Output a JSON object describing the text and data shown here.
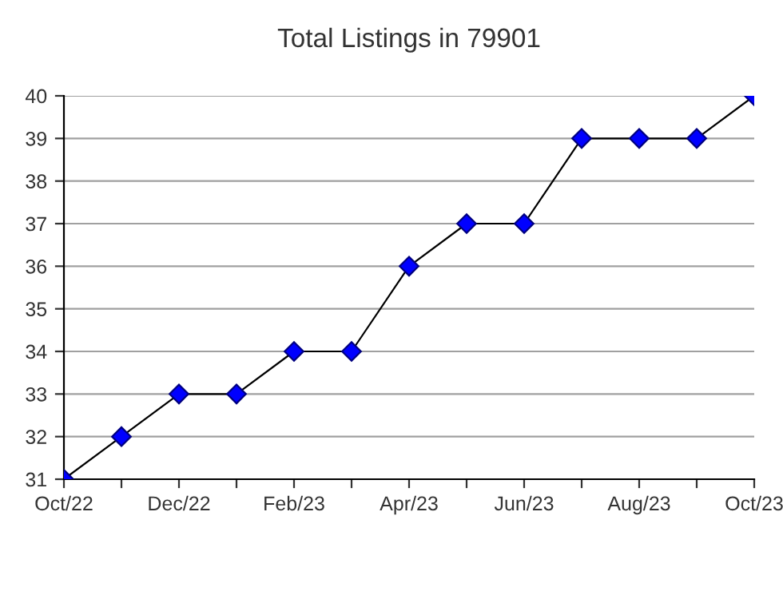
{
  "chart_data": {
    "type": "line",
    "title": "Total Listings in 79901",
    "categories": [
      "Oct/22",
      null,
      "Dec/22",
      null,
      "Feb/23",
      null,
      "Apr/23",
      null,
      "Jun/23",
      null,
      "Aug/23",
      null,
      "Oct/23"
    ],
    "series": [
      {
        "color": "#0000ff",
        "values": [
          31,
          32,
          33,
          33,
          34,
          34,
          36,
          37,
          37,
          39,
          39,
          39,
          40
        ]
      }
    ],
    "ylim": [
      31,
      40
    ],
    "yticks": [
      31,
      32,
      33,
      34,
      35,
      36,
      37,
      38,
      39,
      40
    ],
    "grid": "y",
    "marker": "diamond",
    "line_style": "solid"
  }
}
